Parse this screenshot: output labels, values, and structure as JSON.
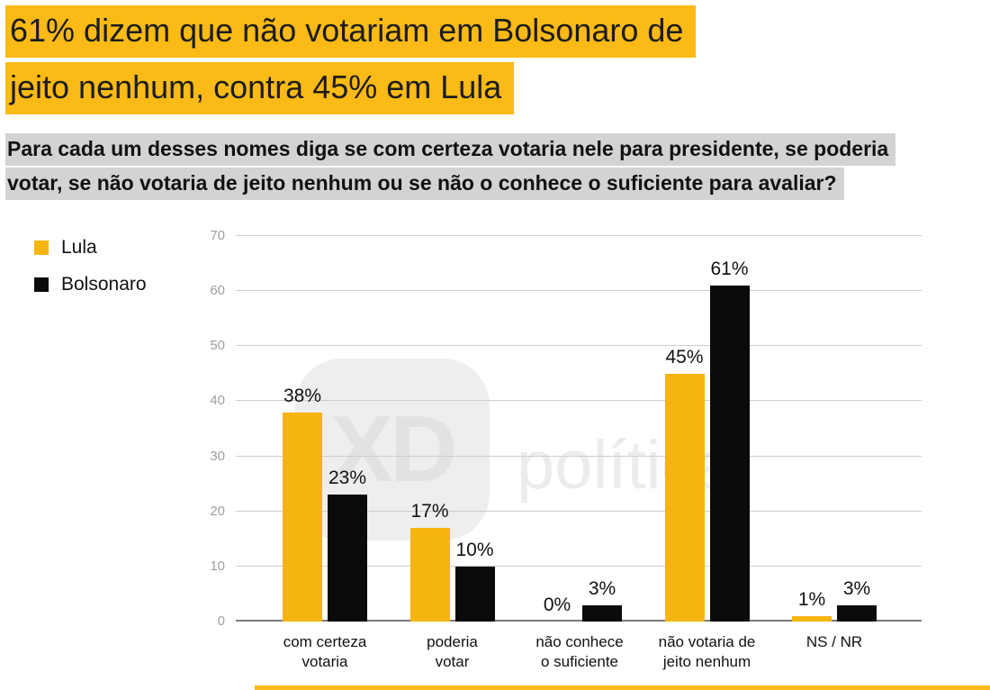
{
  "title": {
    "line1": "61% dizem que não votariam em Bolsonaro de",
    "line2": "jeito nenhum, contra 45% em Lula"
  },
  "subtitle": {
    "line1": "Para cada um desses nomes diga se com certeza votaria nele para presidente, se poderia",
    "line2": "votar, se não votaria de jeito nenhum ou se não o conhece o suficiente para avaliar?"
  },
  "watermark": {
    "icon_text": "XD",
    "brand_text": "política"
  },
  "colors": {
    "highlight_yellow": "#FBBA15",
    "highlight_gray": "#D3D3D3",
    "lula_bar": "#F6B40F",
    "bolsonaro_bar": "#0B0B0B",
    "gridline": "#CDCDCD",
    "axis_baseline": "#7B7B7B",
    "ytick_text": "#9E9E9E"
  },
  "chart_data": {
    "type": "bar",
    "title": "",
    "xlabel": "",
    "ylabel": "",
    "categories": [
      "com certeza votaria",
      "poderia votar",
      "não conhece o suficiente",
      "não votaria de jeito nenhum",
      "NS / NR"
    ],
    "category_lines": [
      [
        "com certeza",
        "votaria"
      ],
      [
        "poderia",
        "votar"
      ],
      [
        "não conhece",
        "o suficiente"
      ],
      [
        "não votaria de",
        "jeito nenhum"
      ],
      [
        "NS / NR"
      ]
    ],
    "series": [
      {
        "name": "Lula",
        "color": "#F6B40F",
        "values": [
          38,
          17,
          0,
          45,
          1
        ]
      },
      {
        "name": "Bolsonaro",
        "color": "#0B0B0B",
        "values": [
          23,
          10,
          3,
          61,
          3
        ]
      }
    ],
    "data_labels": true,
    "value_suffix": "%",
    "ylim": [
      0,
      70
    ],
    "yticks": [
      0,
      10,
      20,
      30,
      40,
      50,
      60,
      70
    ],
    "grid": true,
    "legend_position": "top-left"
  }
}
